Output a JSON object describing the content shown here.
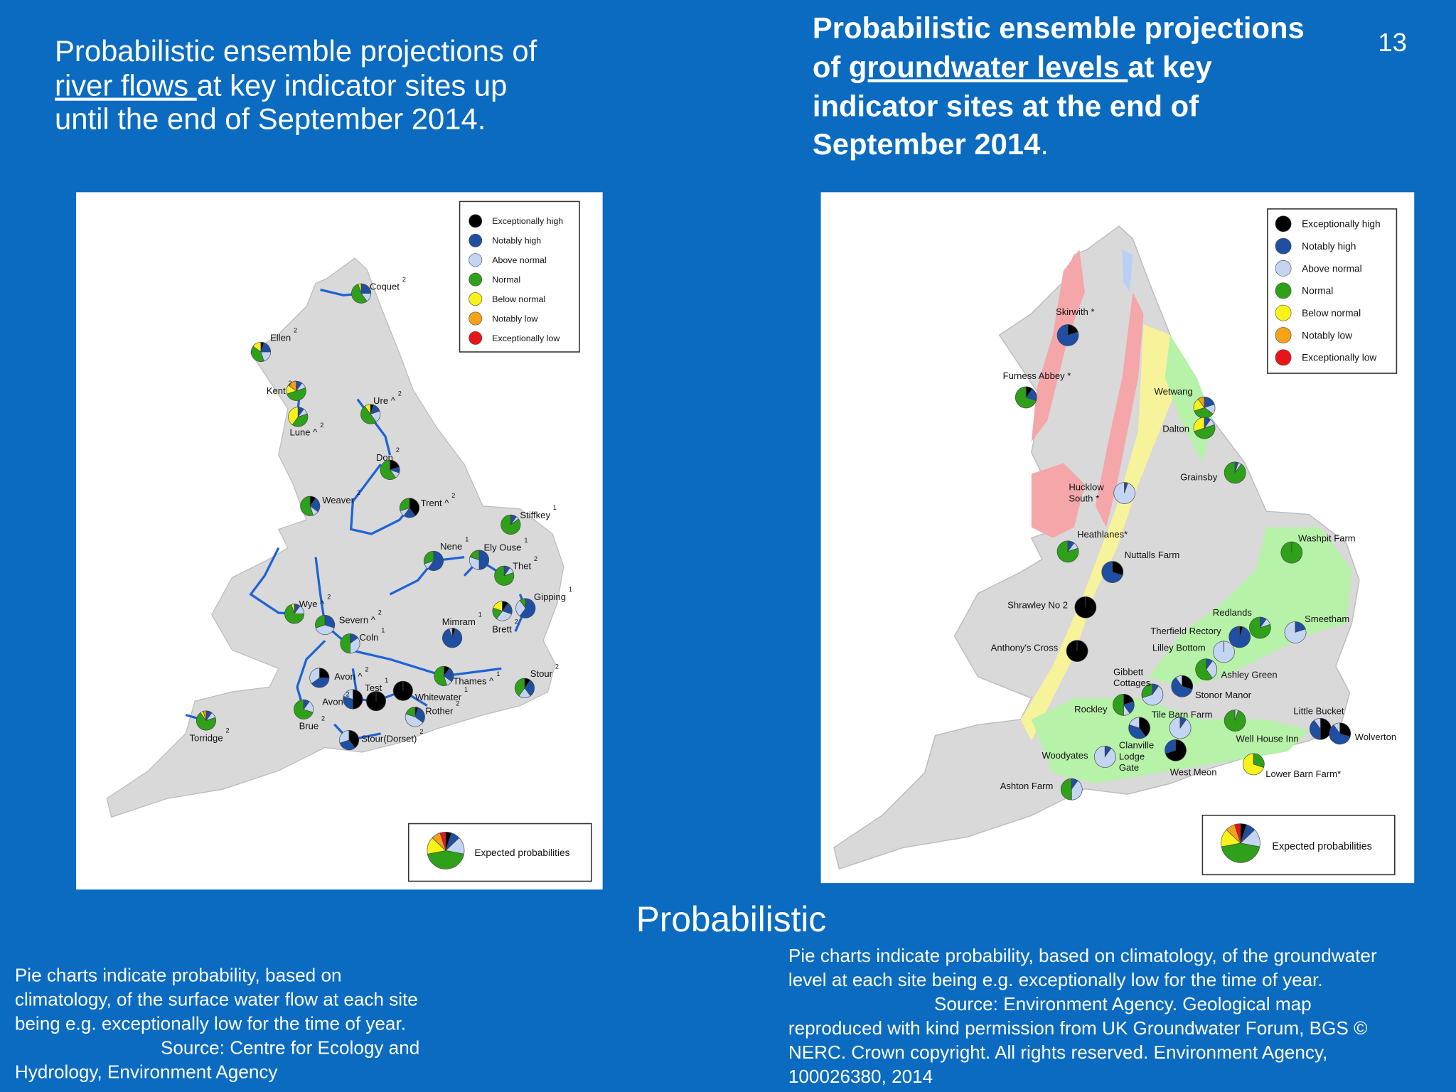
{
  "slide_number": "13",
  "categories": [
    {
      "label": "Exceptionally high",
      "color": "#000000"
    },
    {
      "label": "Notably high",
      "color": "#1f4fa3"
    },
    {
      "label": "Above normal",
      "color": "#c3d5f2"
    },
    {
      "label": "Normal",
      "color": "#2ea01a"
    },
    {
      "label": "Below normal",
      "color": "#f7f21a"
    },
    {
      "label": "Notably low",
      "color": "#f4a21a"
    },
    {
      "label": "Exceptionally low",
      "color": "#e8141a"
    }
  ],
  "left_map": {
    "title_lines": [
      [
        "Probabilistic ensemble projections of"
      ],
      [
        "river flows ",
        "at key indicator sites up"
      ],
      [
        "until the end of September 2014."
      ]
    ],
    "expected": {
      "label": "Expected probabilities",
      "shares": [
        5,
        8,
        15,
        44,
        15,
        8,
        5
      ]
    },
    "sites": [
      {
        "label": "Coquet",
        "note": "2",
        "shares": [
          0,
          25,
          15,
          55,
          5,
          0,
          0
        ]
      },
      {
        "label": "Ellen",
        "note": "2",
        "shares": [
          5,
          20,
          20,
          40,
          15,
          0,
          0
        ]
      },
      {
        "label": "Kent",
        "note": "2",
        "shares": [
          0,
          10,
          10,
          50,
          15,
          15,
          0
        ]
      },
      {
        "label": "Lune ^",
        "note": "2",
        "shares": [
          0,
          10,
          10,
          40,
          40,
          0,
          0
        ]
      },
      {
        "label": "Ure ^",
        "note": "2",
        "shares": [
          5,
          15,
          20,
          50,
          10,
          0,
          0
        ]
      },
      {
        "label": "Don",
        "note": "2",
        "shares": [
          20,
          10,
          10,
          60,
          0,
          0,
          0
        ]
      },
      {
        "label": "Weaver",
        "note": "2",
        "shares": [
          10,
          25,
          10,
          55,
          0,
          0,
          0
        ]
      },
      {
        "label": "Trent ^",
        "note": "2",
        "shares": [
          40,
          20,
          10,
          30,
          0,
          0,
          0
        ]
      },
      {
        "label": "Stiffkey",
        "note": "1",
        "shares": [
          0,
          10,
          5,
          85,
          0,
          0,
          0
        ]
      },
      {
        "label": "Nene",
        "note": "1",
        "shares": [
          0,
          60,
          10,
          30,
          0,
          0,
          0
        ]
      },
      {
        "label": "Ely Ouse",
        "note": "1",
        "shares": [
          0,
          50,
          30,
          20,
          0,
          0,
          0
        ]
      },
      {
        "label": "Thet",
        "note": "2",
        "shares": [
          0,
          10,
          10,
          80,
          0,
          0,
          0
        ]
      },
      {
        "label": "Gipping",
        "note": "1",
        "shares": [
          0,
          60,
          30,
          10,
          0,
          0,
          0
        ]
      },
      {
        "label": "Brett",
        "note": "2",
        "shares": [
          10,
          20,
          30,
          20,
          20,
          0,
          0
        ]
      },
      {
        "label": "Wye ^",
        "note": "2",
        "shares": [
          0,
          10,
          15,
          70,
          5,
          0,
          0
        ]
      },
      {
        "label": "Severn ^",
        "note": "2",
        "shares": [
          0,
          30,
          40,
          30,
          0,
          0,
          0
        ]
      },
      {
        "label": "Mimram",
        "note": "1",
        "shares": [
          5,
          90,
          5,
          0,
          0,
          0,
          0
        ]
      },
      {
        "label": "Coln",
        "note": "1",
        "shares": [
          0,
          15,
          35,
          50,
          0,
          0,
          0
        ]
      },
      {
        "label": "Avon ^",
        "note": "2",
        "shares": [
          25,
          40,
          35,
          0,
          0,
          0,
          0
        ]
      },
      {
        "label": "Thames ^",
        "note": "1",
        "shares": [
          10,
          25,
          10,
          55,
          0,
          0,
          0
        ]
      },
      {
        "label": "Stour",
        "note": "2",
        "shares": [
          10,
          30,
          20,
          40,
          0,
          0,
          0
        ]
      },
      {
        "label": "Avon",
        "note": "2",
        "shares": [
          50,
          30,
          20,
          0,
          0,
          0,
          0
        ]
      },
      {
        "label": "Test",
        "note": "1",
        "shares": [
          100,
          0,
          0,
          0,
          0,
          0,
          0
        ]
      },
      {
        "label": "Whitewater",
        "note": "1",
        "shares": [
          100,
          0,
          0,
          0,
          0,
          0,
          0
        ]
      },
      {
        "label": "Rother",
        "note": "2",
        "shares": [
          5,
          30,
          45,
          20,
          0,
          0,
          0
        ]
      },
      {
        "label": "Brue",
        "note": "2",
        "shares": [
          0,
          10,
          20,
          70,
          0,
          0,
          0
        ]
      },
      {
        "label": "Torridge",
        "note": "2",
        "shares": [
          0,
          10,
          10,
          70,
          5,
          5,
          0
        ]
      },
      {
        "label": "Stour(Dorset)",
        "note": "2",
        "shares": [
          40,
          30,
          30,
          0,
          0,
          0,
          0
        ]
      }
    ],
    "caption_lines": [
      "Pie charts indicate probability, based on",
      "climatology, of the surface water flow at each site",
      "being e.g. exceptionally low for the time of year.",
      "Source: Centre for Ecology and",
      "Hydrology, Environment Agency"
    ]
  },
  "right_map": {
    "title_lines": [
      [
        "Probabilistic ensemble projections"
      ],
      [
        "of ",
        "groundwater levels ",
        "at key"
      ],
      [
        "indicator sites at the end of"
      ],
      [
        "September 2014",
        "."
      ]
    ],
    "expected": {
      "label": "Expected probabilities",
      "shares": [
        5,
        8,
        15,
        44,
        15,
        8,
        5
      ]
    },
    "sites": [
      {
        "label_lines": [
          "Skirwith *"
        ],
        "shares": [
          20,
          80,
          0,
          0,
          0,
          0,
          0
        ]
      },
      {
        "label_lines": [
          "Furness Abbey *"
        ],
        "shares": [
          10,
          20,
          0,
          70,
          0,
          0,
          0
        ]
      },
      {
        "label_lines": [
          "Wetwang"
        ],
        "shares": [
          0,
          20,
          15,
          35,
          20,
          10,
          0
        ]
      },
      {
        "label_lines": [
          "Dalton"
        ],
        "shares": [
          0,
          10,
          10,
          50,
          30,
          0,
          0
        ]
      },
      {
        "label_lines": [
          "Grainsby"
        ],
        "shares": [
          0,
          5,
          5,
          90,
          0,
          0,
          0
        ]
      },
      {
        "label_lines": [
          "Hucklow",
          "South *"
        ],
        "shares": [
          0,
          5,
          95,
          0,
          0,
          0,
          0
        ]
      },
      {
        "label_lines": [
          "Heathlanes*"
        ],
        "shares": [
          0,
          10,
          10,
          80,
          0,
          0,
          0
        ]
      },
      {
        "label_lines": [
          "Nuttalls Farm"
        ],
        "shares": [
          30,
          70,
          0,
          0,
          0,
          0,
          0
        ]
      },
      {
        "label_lines": [
          "Washpit Farm"
        ],
        "shares": [
          0,
          0,
          0,
          100,
          0,
          0,
          0
        ]
      },
      {
        "label_lines": [
          "Shrawley No 2"
        ],
        "shares": [
          100,
          0,
          0,
          0,
          0,
          0,
          0
        ]
      },
      {
        "label_lines": [
          "Redlands"
        ],
        "shares": [
          0,
          10,
          10,
          80,
          0,
          0,
          0
        ]
      },
      {
        "label_lines": [
          "Smeetham"
        ],
        "shares": [
          0,
          20,
          80,
          0,
          0,
          0,
          0
        ]
      },
      {
        "label_lines": [
          "Therfield Rectory"
        ],
        "shares": [
          5,
          95,
          0,
          0,
          0,
          0,
          0
        ]
      },
      {
        "label_lines": [
          "Lilley Bottom"
        ],
        "shares": [
          0,
          0,
          100,
          0,
          0,
          0,
          0
        ]
      },
      {
        "label_lines": [
          "Anthony's Cross"
        ],
        "shares": [
          100,
          0,
          0,
          0,
          0,
          0,
          0
        ]
      },
      {
        "label_lines": [
          "Ashley Green"
        ],
        "shares": [
          0,
          10,
          30,
          60,
          0,
          0,
          0
        ]
      },
      {
        "label_lines": [
          "Gibbett",
          "Cottages"
        ],
        "shares": [
          0,
          10,
          60,
          30,
          0,
          0,
          0
        ]
      },
      {
        "label_lines": [
          "Stonor Manor"
        ],
        "shares": [
          30,
          60,
          10,
          0,
          0,
          0,
          0
        ]
      },
      {
        "label_lines": [
          "Rockley"
        ],
        "shares": [
          20,
          20,
          10,
          50,
          0,
          0,
          0
        ]
      },
      {
        "label_lines": [
          "Tile Barn Farm"
        ],
        "shares": [
          0,
          10,
          90,
          0,
          0,
          0,
          0
        ]
      },
      {
        "label_lines": [
          "Clanville",
          "Lodge",
          "Gate"
        ],
        "shares": [
          40,
          40,
          20,
          0,
          0,
          0,
          0
        ]
      },
      {
        "label_lines": [
          "Well House Inn"
        ],
        "shares": [
          0,
          0,
          5,
          95,
          0,
          0,
          0
        ]
      },
      {
        "label_lines": [
          "Little Bucket"
        ],
        "shares": [
          50,
          40,
          10,
          0,
          0,
          0,
          0
        ]
      },
      {
        "label_lines": [
          "Wolverton"
        ],
        "shares": [
          30,
          60,
          10,
          0,
          0,
          0,
          0
        ]
      },
      {
        "label_lines": [
          "Woodyates"
        ],
        "shares": [
          0,
          10,
          90,
          0,
          0,
          0,
          0
        ]
      },
      {
        "label_lines": [
          "West Meon"
        ],
        "shares": [
          70,
          30,
          0,
          0,
          0,
          0,
          0
        ]
      },
      {
        "label_lines": [
          "Lower Barn Farm*"
        ],
        "shares": [
          0,
          0,
          0,
          30,
          70,
          0,
          0
        ]
      },
      {
        "label_lines": [
          "Ashton Farm"
        ],
        "shares": [
          0,
          10,
          40,
          50,
          0,
          0,
          0
        ]
      }
    ],
    "caption_lines": [
      "Pie charts indicate probability, based on climatology, of the groundwater",
      "level at each site being e.g. exceptionally low for the time of year.",
      "Source: Environment Agency. Geological map",
      "reproduced with kind permission from UK Groundwater Forum, BGS ©",
      "NERC.  Crown copyright. All rights reserved. Environment Agency,",
      "100026380, 2014"
    ]
  },
  "footer_word": "Probabilistic"
}
